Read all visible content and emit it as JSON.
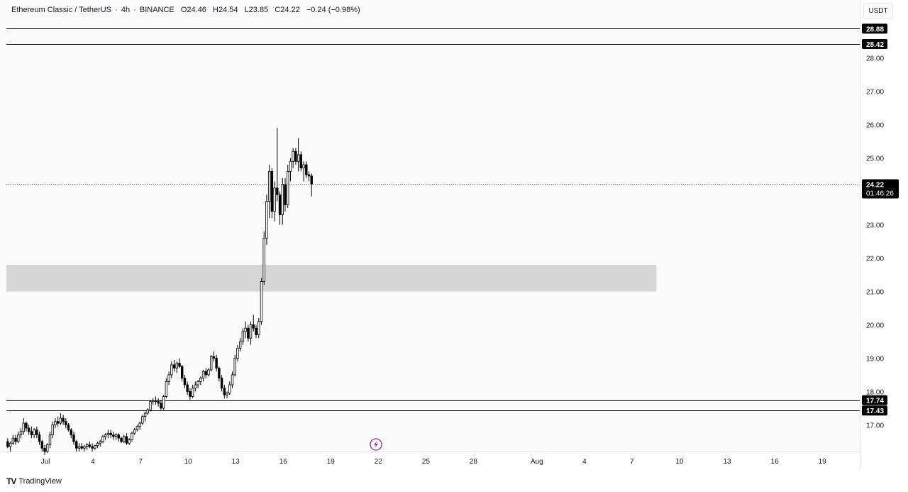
{
  "header": {
    "symbol": "Ethereum Classic / TetherUS",
    "interval": "4h",
    "exchange": "BINANCE",
    "open": "O24.46",
    "high": "H24.54",
    "low": "L23.85",
    "close": "C24.22",
    "change": "−0.24 (−0.98%)"
  },
  "currency": "USDT",
  "brand": "TradingView",
  "countdown": "01:46:26",
  "colors": {
    "up": "#ffffff",
    "down": "#000000",
    "zone": "#d6d6d6",
    "line": "#000000",
    "event": "#9c27b0"
  },
  "event_icon": "lightning-icon",
  "chart_data": {
    "type": "candlestick",
    "title": "Ethereum Classic / TetherUS",
    "ylim": [
      16.2,
      29.1
    ],
    "y_ticks": [
      "17.00",
      "18.00",
      "19.00",
      "20.00",
      "21.00",
      "22.00",
      "23.00",
      "24.00",
      "25.00",
      "26.00",
      "27.00",
      "28.00"
    ],
    "x_ticks": [
      "Jul",
      "4",
      "7",
      "10",
      "13",
      "16",
      "19",
      "22",
      "25",
      "28",
      "Aug",
      "4",
      "7",
      "10",
      "13",
      "16",
      "19"
    ],
    "last_price": "24.22",
    "horizontal_lines": [
      {
        "price": 28.88,
        "label": "28.88"
      },
      {
        "price": 28.42,
        "label": "28.42"
      },
      {
        "price": 17.74,
        "label": "17.74"
      },
      {
        "price": 17.43,
        "label": "17.43"
      }
    ],
    "zone": {
      "from_day": -1,
      "to_day": 41,
      "low": 21.0,
      "high": 21.8
    },
    "series_day_start": 0,
    "candles_per_day": 6,
    "ohlc": [
      [
        16.5,
        16.6,
        16.3,
        16.35
      ],
      [
        16.35,
        16.5,
        16.2,
        16.45
      ],
      [
        16.45,
        16.7,
        16.4,
        16.6
      ],
      [
        16.6,
        16.7,
        16.4,
        16.5
      ],
      [
        16.5,
        16.8,
        16.45,
        16.7
      ],
      [
        16.7,
        16.9,
        16.6,
        16.8
      ],
      [
        16.8,
        17.2,
        16.7,
        17.05
      ],
      [
        17.05,
        17.1,
        16.8,
        16.9
      ],
      [
        16.9,
        17.0,
        16.7,
        16.8
      ],
      [
        16.8,
        16.95,
        16.6,
        16.7
      ],
      [
        16.7,
        16.9,
        16.6,
        16.85
      ],
      [
        16.85,
        16.95,
        16.6,
        16.7
      ],
      [
        16.7,
        16.8,
        16.4,
        16.5
      ],
      [
        16.5,
        16.55,
        16.2,
        16.3
      ],
      [
        16.3,
        16.4,
        16.1,
        16.2
      ],
      [
        16.2,
        16.45,
        16.15,
        16.4
      ],
      [
        16.4,
        16.8,
        16.3,
        16.7
      ],
      [
        16.7,
        17.1,
        16.6,
        17.0
      ],
      [
        17.0,
        17.2,
        16.9,
        17.1
      ],
      [
        17.1,
        17.25,
        16.95,
        17.05
      ],
      [
        17.05,
        17.35,
        17.0,
        17.2
      ],
      [
        17.2,
        17.3,
        17.0,
        17.1
      ],
      [
        17.1,
        17.2,
        16.9,
        17.0
      ],
      [
        17.0,
        17.05,
        16.8,
        16.85
      ],
      [
        16.85,
        16.9,
        16.6,
        16.7
      ],
      [
        16.7,
        16.8,
        16.4,
        16.5
      ],
      [
        16.5,
        16.55,
        16.2,
        16.3
      ],
      [
        16.3,
        16.45,
        16.2,
        16.35
      ],
      [
        16.35,
        16.45,
        16.25,
        16.3
      ],
      [
        16.3,
        16.4,
        16.2,
        16.35
      ],
      [
        16.35,
        16.45,
        16.25,
        16.4
      ],
      [
        16.4,
        16.5,
        16.3,
        16.35
      ],
      [
        16.35,
        16.45,
        16.2,
        16.3
      ],
      [
        16.3,
        16.4,
        16.25,
        16.38
      ],
      [
        16.38,
        16.5,
        16.3,
        16.45
      ],
      [
        16.45,
        16.55,
        16.35,
        16.5
      ],
      [
        16.5,
        16.7,
        16.45,
        16.65
      ],
      [
        16.65,
        16.75,
        16.55,
        16.7
      ],
      [
        16.7,
        16.85,
        16.6,
        16.75
      ],
      [
        16.75,
        16.85,
        16.6,
        16.7
      ],
      [
        16.7,
        16.8,
        16.55,
        16.65
      ],
      [
        16.65,
        16.75,
        16.55,
        16.7
      ],
      [
        16.7,
        16.75,
        16.5,
        16.6
      ],
      [
        16.6,
        16.65,
        16.45,
        16.5
      ],
      [
        16.5,
        16.7,
        16.45,
        16.65
      ],
      [
        16.65,
        16.75,
        16.4,
        16.45
      ],
      [
        16.45,
        16.6,
        16.4,
        16.55
      ],
      [
        16.55,
        16.8,
        16.5,
        16.75
      ],
      [
        16.75,
        16.9,
        16.7,
        16.85
      ],
      [
        16.85,
        17.0,
        16.8,
        16.95
      ],
      [
        16.95,
        17.1,
        16.85,
        17.05
      ],
      [
        17.05,
        17.3,
        17.0,
        17.25
      ],
      [
        17.25,
        17.4,
        17.1,
        17.35
      ],
      [
        17.35,
        17.5,
        17.3,
        17.45
      ],
      [
        17.45,
        17.75,
        17.4,
        17.7
      ],
      [
        17.7,
        17.8,
        17.6,
        17.72
      ],
      [
        17.72,
        17.85,
        17.6,
        17.7
      ],
      [
        17.7,
        17.8,
        17.55,
        17.65
      ],
      [
        17.65,
        17.75,
        17.45,
        17.5
      ],
      [
        17.5,
        17.9,
        17.45,
        17.85
      ],
      [
        17.85,
        18.4,
        17.8,
        18.3
      ],
      [
        18.3,
        18.6,
        18.2,
        18.5
      ],
      [
        18.5,
        18.9,
        18.4,
        18.8
      ],
      [
        18.8,
        18.95,
        18.6,
        18.7
      ],
      [
        18.7,
        18.9,
        18.55,
        18.85
      ],
      [
        18.85,
        19.0,
        18.7,
        18.75
      ],
      [
        18.75,
        18.8,
        18.3,
        18.4
      ],
      [
        18.4,
        18.5,
        18.1,
        18.2
      ],
      [
        18.2,
        18.3,
        17.9,
        18.0
      ],
      [
        18.0,
        18.1,
        17.75,
        17.85
      ],
      [
        17.85,
        18.2,
        17.8,
        18.1
      ],
      [
        18.1,
        18.3,
        18.0,
        18.2
      ],
      [
        18.2,
        18.35,
        18.1,
        18.3
      ],
      [
        18.3,
        18.45,
        18.2,
        18.4
      ],
      [
        18.4,
        18.65,
        18.3,
        18.6
      ],
      [
        18.6,
        18.7,
        18.4,
        18.5
      ],
      [
        18.5,
        18.7,
        18.45,
        18.65
      ],
      [
        18.65,
        19.1,
        18.6,
        19.05
      ],
      [
        19.05,
        19.2,
        18.9,
        19.0
      ],
      [
        19.0,
        19.1,
        18.6,
        18.7
      ],
      [
        18.7,
        18.75,
        18.3,
        18.4
      ],
      [
        18.4,
        18.5,
        18.0,
        18.1
      ],
      [
        18.1,
        18.2,
        17.8,
        17.9
      ],
      [
        17.9,
        18.0,
        17.8,
        17.95
      ],
      [
        17.95,
        18.3,
        17.9,
        18.2
      ],
      [
        18.2,
        18.6,
        18.1,
        18.5
      ],
      [
        18.5,
        19.1,
        18.45,
        19.0
      ],
      [
        19.0,
        19.4,
        18.9,
        19.3
      ],
      [
        19.3,
        19.6,
        19.2,
        19.5
      ],
      [
        19.5,
        19.9,
        19.4,
        19.8
      ],
      [
        19.8,
        20.1,
        19.6,
        19.9
      ],
      [
        19.9,
        20.0,
        19.5,
        19.6
      ],
      [
        19.6,
        20.1,
        19.4,
        20.0
      ],
      [
        20.0,
        20.3,
        19.8,
        19.9
      ],
      [
        19.9,
        20.0,
        19.6,
        19.7
      ],
      [
        19.7,
        20.2,
        19.6,
        20.1
      ],
      [
        20.1,
        21.4,
        20.0,
        21.3
      ],
      [
        21.3,
        22.8,
        21.2,
        22.6
      ],
      [
        22.6,
        23.9,
        22.4,
        23.7
      ],
      [
        23.7,
        24.8,
        23.2,
        24.6
      ],
      [
        24.6,
        24.7,
        23.2,
        23.4
      ],
      [
        23.4,
        24.3,
        23.1,
        24.1
      ],
      [
        24.1,
        25.9,
        23.7,
        23.9
      ],
      [
        23.9,
        24.0,
        23.0,
        23.3
      ],
      [
        23.3,
        24.4,
        23.0,
        24.2
      ],
      [
        24.2,
        24.4,
        23.4,
        23.6
      ],
      [
        23.6,
        24.8,
        23.5,
        24.6
      ],
      [
        24.6,
        25.0,
        24.3,
        24.9
      ],
      [
        24.9,
        25.3,
        24.7,
        25.2
      ],
      [
        25.2,
        25.3,
        24.8,
        24.9
      ],
      [
        24.9,
        25.6,
        24.6,
        25.1
      ],
      [
        25.1,
        25.2,
        24.6,
        24.7
      ],
      [
        24.7,
        24.9,
        24.3,
        24.8
      ],
      [
        24.8,
        24.9,
        24.4,
        24.5
      ],
      [
        24.5,
        24.6,
        24.3,
        24.46
      ],
      [
        24.46,
        24.54,
        23.85,
        24.22
      ]
    ]
  }
}
